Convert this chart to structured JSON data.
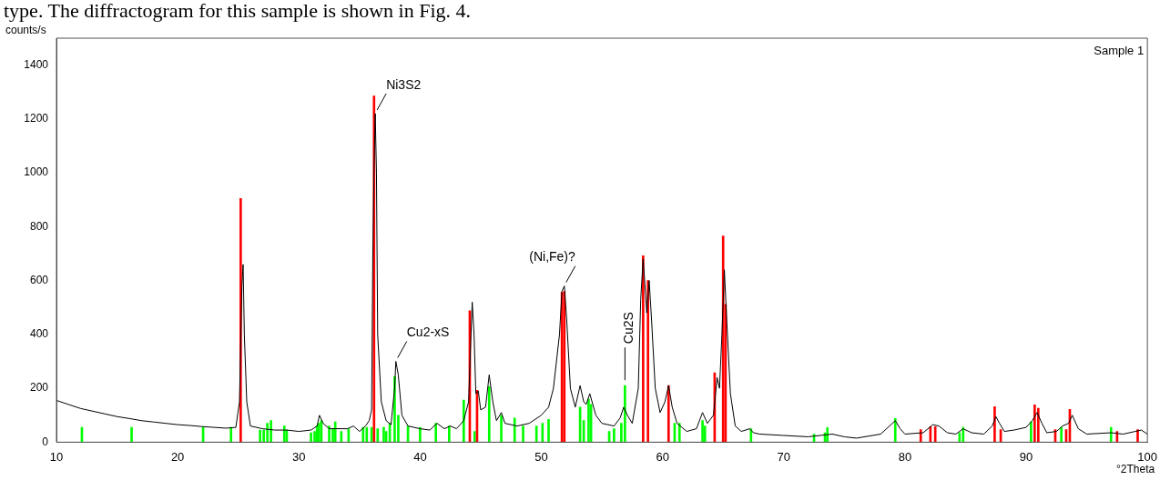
{
  "chart_data": {
    "type": "line",
    "xlabel": "°2Theta",
    "ylabel": "counts/s",
    "xlim": [
      10,
      100
    ],
    "xticks": [
      10,
      20,
      30,
      40,
      50,
      60,
      70,
      80,
      90,
      100
    ],
    "ylim": [
      0,
      1500
    ],
    "yticks": [
      0,
      200,
      400,
      600,
      800,
      1000,
      1200,
      1400
    ],
    "grid": false,
    "legend": false,
    "marker": "none",
    "line_style": "solid",
    "annotations": [
      "type. The diffractogram for this sample is shown in Fig. 4.",
      "Sample 1",
      {
        "text": "Ni3S2",
        "x": 36.3,
        "y": 1220
      },
      {
        "text": "Cu2-xS",
        "x": 38.0,
        "y": 300
      },
      {
        "text": "(Ni,Fe)?",
        "x": 51.9,
        "y": 580
      },
      {
        "text": "Cu2S",
        "x": 56.9,
        "y": 210
      }
    ],
    "series": [
      {
        "color": "#000000",
        "x": [
          10,
          11,
          12,
          13,
          14,
          15,
          16,
          17,
          18,
          19,
          20,
          21,
          22,
          23,
          24,
          24.8,
          25.1,
          25.3,
          25.4,
          25.5,
          25.7,
          26,
          27,
          28,
          29,
          30,
          31,
          31.5,
          31.7,
          32,
          32.5,
          33,
          34,
          34.5,
          35,
          35.5,
          35.8,
          36,
          36.1,
          36.2,
          36.3,
          36.4,
          36.5,
          36.8,
          37.2,
          37.6,
          37.9,
          38.0,
          38.2,
          38.5,
          39,
          40,
          40.8,
          41.4,
          42,
          42.5,
          43,
          43.6,
          44.0,
          44.2,
          44.3,
          44.45,
          44.6,
          44.8,
          45.0,
          45.4,
          45.7,
          46.0,
          46.3,
          46.7,
          47,
          48,
          49,
          50,
          50.6,
          51,
          51.5,
          51.7,
          51.9,
          52.1,
          52.4,
          52.8,
          53.2,
          53.5,
          53.7,
          54.0,
          54.5,
          55,
          56,
          56.5,
          56.8,
          57.1,
          57.5,
          58.0,
          58.2,
          58.4,
          58.6,
          58.7,
          58.9,
          59.1,
          59.4,
          59.8,
          60.2,
          60.5,
          60.8,
          61.2,
          62,
          62.8,
          63.3,
          63.7,
          64.2,
          64.5,
          64.7,
          64.9,
          65.1,
          65.3,
          65.6,
          66,
          66.5,
          67.2,
          67.5,
          68,
          70,
          72,
          74,
          75,
          76,
          78,
          79.2,
          79.6,
          80,
          81.5,
          82.3,
          82.8,
          83.5,
          84.2,
          84.8,
          85.5,
          86.5,
          87.2,
          87.5,
          87.8,
          88.2,
          89,
          90,
          90.5,
          90.9,
          91.3,
          91.7,
          92.5,
          93,
          93.5,
          93.8,
          94.3,
          95,
          97,
          98,
          99,
          99.5,
          100
        ],
        "values": [
          155,
          140,
          125,
          115,
          105,
          95,
          88,
          80,
          75,
          70,
          65,
          62,
          58,
          55,
          52,
          55,
          150,
          580,
          660,
          400,
          150,
          60,
          50,
          45,
          45,
          40,
          45,
          60,
          100,
          70,
          50,
          50,
          50,
          60,
          40,
          60,
          80,
          120,
          700,
          1020,
          1220,
          1000,
          400,
          150,
          80,
          65,
          200,
          300,
          250,
          100,
          60,
          50,
          45,
          70,
          50,
          60,
          50,
          80,
          150,
          400,
          520,
          400,
          180,
          190,
          120,
          130,
          250,
          150,
          80,
          110,
          70,
          60,
          70,
          100,
          130,
          200,
          400,
          560,
          580,
          450,
          200,
          130,
          210,
          150,
          140,
          180,
          100,
          70,
          60,
          90,
          130,
          100,
          70,
          200,
          530,
          680,
          550,
          480,
          600,
          450,
          200,
          110,
          150,
          210,
          130,
          70,
          40,
          50,
          110,
          70,
          100,
          240,
          200,
          400,
          640,
          450,
          180,
          60,
          40,
          50,
          35,
          30,
          25,
          20,
          30,
          20,
          15,
          30,
          80,
          50,
          30,
          35,
          65,
          60,
          35,
          30,
          50,
          35,
          30,
          60,
          95,
          70,
          40,
          45,
          55,
          80,
          110,
          70,
          35,
          40,
          60,
          70,
          100,
          50,
          30,
          35,
          30,
          40,
          45,
          30
        ]
      },
      {
        "type": "bar",
        "color": "#ff0000",
        "x": [
          25.2,
          36.2,
          44.1,
          44.7,
          51.7,
          51.9,
          58.4,
          58.8,
          60.5,
          64.3,
          65.0,
          65.2,
          81.3,
          82.1,
          82.5,
          87.4,
          87.9,
          90.7,
          91.0,
          92.4,
          93.3,
          93.6,
          97.5,
          99.2
        ],
        "values": [
          905,
          1285,
          488,
          193,
          556,
          560,
          692,
          600,
          210,
          258,
          766,
          512,
          47,
          58,
          58,
          132,
          47,
          139,
          126,
          47,
          47,
          122,
          40,
          47
        ]
      },
      {
        "type": "bar",
        "color": "#00ff00",
        "x": [
          12.1,
          16.2,
          22.1,
          24.4,
          26.8,
          27.1,
          27.4,
          27.7,
          28.8,
          29.0,
          31.0,
          31.3,
          31.5,
          31.65,
          31.85,
          32.5,
          32.8,
          33.0,
          33.5,
          34.1,
          35.3,
          35.6,
          36.0,
          36.5,
          37.0,
          37.2,
          37.5,
          37.9,
          38.2,
          39.0,
          40.0,
          41.3,
          42.4,
          43.6,
          44.5,
          45.7,
          46.7,
          47.8,
          48.5,
          49.6,
          50.1,
          50.6,
          53.2,
          53.5,
          53.9,
          54.1,
          55.6,
          56.0,
          56.6,
          56.9,
          61.0,
          61.4,
          63.3,
          63.5,
          67.3,
          72.5,
          73.4,
          73.6,
          79.2,
          84.5,
          84.8,
          90.4,
          92.9,
          97.0
        ],
        "values": [
          55,
          55,
          55,
          55,
          45,
          45,
          70,
          80,
          60,
          45,
          35,
          40,
          60,
          70,
          80,
          60,
          50,
          75,
          40,
          50,
          55,
          55,
          55,
          50,
          55,
          40,
          70,
          244,
          100,
          60,
          55,
          70,
          60,
          156,
          40,
          207,
          100,
          90,
          60,
          60,
          70,
          85,
          130,
          80,
          160,
          140,
          40,
          50,
          70,
          210,
          70,
          70,
          80,
          60,
          50,
          30,
          35,
          54,
          88,
          35,
          55,
          75,
          55,
          55
        ]
      }
    ]
  }
}
